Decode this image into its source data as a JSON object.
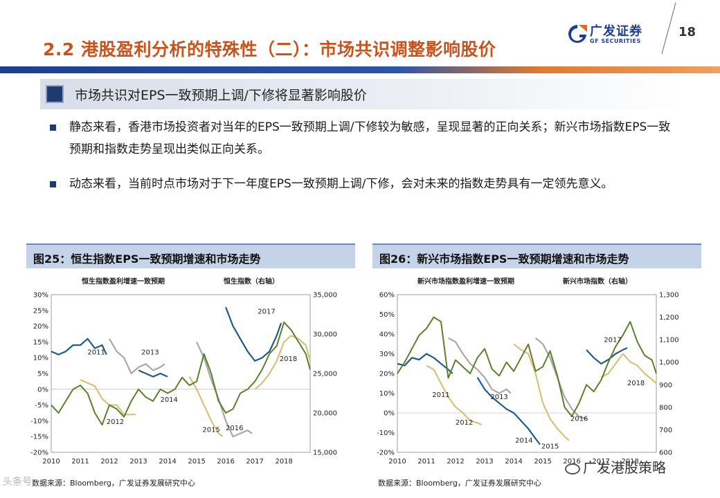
{
  "header": {
    "title": "2.2 港股盈利分析的特殊性（二）：市场共识调整影响股价",
    "logo_cn": "广发证券",
    "logo_en": "GF SECURITIES",
    "page_number": "18"
  },
  "section": {
    "heading": "市场共识对EPS一致预期上调/下修将显著影响股价"
  },
  "bullets": [
    "静态来看，香港市场投资者对当年的EPS一致预期上调/下修较为敏感，呈现显著的正向关系；新兴市场指数EPS一致预期和指数走势呈现出类似正向关系。",
    "动态来看，当前时点市场对于下一年度EPS一致预期上调/下修，会对未来的指数走势具有一定领先意义。"
  ],
  "colors": {
    "accent": "#c8531c",
    "navy": "#1f3a6e",
    "blue_line": "#1e5a8c",
    "gray_line": "#a8a8a8",
    "gold_line": "#d9c07a",
    "green_line": "#5b7f2c"
  },
  "figures": [
    {
      "title": "图25：恒生指数EPS一致预期增速和市场走势",
      "source": "数据来源：Bloomberg，广发证券发展研究中心"
    },
    {
      "title": "图26：新兴市场指数EPS一致预期增速和市场走势",
      "source": "数据来源：Bloomberg，广发证券发展研究中心"
    }
  ],
  "watermark": {
    "right": "广发港股策略",
    "left": "头条号"
  },
  "chart_data": [
    {
      "type": "line",
      "legend": [
        "恒生指数盈利增速一致预期",
        "恒生指数（右轴）"
      ],
      "x_labels": [
        "2010",
        "2011",
        "2012",
        "2013",
        "2014",
        "2015",
        "2016",
        "2017",
        "2018"
      ],
      "xlim": [
        2010,
        2018.9
      ],
      "ylim": [
        -20,
        30
      ],
      "y_ticks": [
        "30%",
        "25%",
        "20%",
        "15%",
        "10%",
        "5%",
        "0%",
        "-5%",
        "-10%",
        "-15%",
        "-20%"
      ],
      "y2lim": [
        15000,
        35000
      ],
      "y2_ticks": [
        "35,000",
        "30,000",
        "25,000",
        "20,000",
        "15,000"
      ],
      "annotations": [
        "2011",
        "2012",
        "2013",
        "2014",
        "2015",
        "2016",
        "2017",
        "2018"
      ],
      "series": [
        {
          "name": "2011",
          "color": "blue",
          "x": [
            2010,
            2010.25,
            2010.5,
            2010.75,
            2011,
            2011.25,
            2011.5,
            2011.75,
            2011.9
          ],
          "y": [
            12,
            11,
            12,
            14,
            14,
            16,
            13,
            14,
            11
          ]
        },
        {
          "name": "2012",
          "color": "gold",
          "x": [
            2011,
            2011.25,
            2011.5,
            2011.75,
            2012,
            2012.25,
            2012.5,
            2012.75,
            2012.9
          ],
          "y": [
            3,
            2,
            1,
            -3,
            -5,
            -5,
            -8,
            -8,
            -8
          ]
        },
        {
          "name": "2013",
          "color": "gray",
          "x": [
            2012,
            2012.25,
            2012.5,
            2012.75,
            2013,
            2013.25,
            2013.5,
            2013.75,
            2013.9
          ],
          "y": [
            16,
            12,
            10,
            5,
            7,
            8,
            6,
            7,
            8
          ]
        },
        {
          "name": "2014",
          "color": "blue",
          "x": [
            2013,
            2013.25,
            2013.5,
            2013.75,
            2014
          ],
          "y": [
            6,
            5,
            4,
            5,
            4
          ]
        },
        {
          "name": "2015",
          "color": "gold",
          "x": [
            2014.75,
            2015,
            2015.25,
            2015.5,
            2015.75,
            2015.9
          ],
          "y": [
            4,
            0,
            -5,
            -10,
            -14,
            -15
          ]
        },
        {
          "name": "2016",
          "color": "gray",
          "x": [
            2015,
            2015.25,
            2015.5,
            2015.75,
            2016,
            2016.25,
            2016.5,
            2016.75,
            2016.9
          ],
          "y": [
            15,
            10,
            3,
            -3,
            -10,
            -15,
            -14,
            -13,
            -14
          ]
        },
        {
          "name": "2017",
          "color": "blue",
          "x": [
            2016,
            2016.25,
            2016.5,
            2016.75,
            2017,
            2017.25,
            2017.5,
            2017.75,
            2017.9
          ],
          "y": [
            26,
            20,
            16,
            12,
            9,
            10,
            12,
            17,
            21
          ]
        },
        {
          "name": "2018",
          "color": "gold",
          "x": [
            2017,
            2017.25,
            2017.5,
            2017.75,
            2018,
            2018.25,
            2018.5,
            2018.75,
            2018.9
          ],
          "y": [
            0,
            2,
            5,
            9,
            15,
            17,
            16,
            14,
            9
          ]
        },
        {
          "name": "恒生指数（右轴）",
          "color": "green",
          "axis": "right",
          "x": [
            2010,
            2010.25,
            2010.5,
            2010.75,
            2011,
            2011.25,
            2011.5,
            2011.75,
            2012,
            2012.25,
            2012.5,
            2012.75,
            2013,
            2013.25,
            2013.5,
            2013.75,
            2014,
            2014.25,
            2014.5,
            2014.75,
            2015,
            2015.25,
            2015.5,
            2015.75,
            2016,
            2016.25,
            2016.5,
            2016.75,
            2017,
            2017.25,
            2017.5,
            2017.75,
            2018,
            2018.25,
            2018.5,
            2018.75,
            2018.9
          ],
          "y": [
            21000,
            20000,
            21500,
            23000,
            23500,
            22500,
            20000,
            18500,
            21000,
            20500,
            19500,
            21500,
            23000,
            22000,
            21500,
            23000,
            22500,
            23000,
            24500,
            23500,
            24000,
            27500,
            25000,
            21500,
            20000,
            20500,
            22500,
            23000,
            24000,
            25500,
            27500,
            28500,
            31500,
            30500,
            29000,
            27500,
            25500
          ]
        }
      ]
    },
    {
      "type": "line",
      "legend": [
        "新兴市场指数盈利增速一致预期",
        "新兴市场指数（右轴）"
      ],
      "x_labels": [
        "2010",
        "2011",
        "2012",
        "2013",
        "2014",
        "2015",
        "2016",
        "2017",
        "2018"
      ],
      "xlim": [
        2010,
        2018.9
      ],
      "ylim": [
        -20,
        60
      ],
      "y_ticks": [
        "60%",
        "50%",
        "40%",
        "30%",
        "20%",
        "10%",
        "0%",
        "-10%",
        "-20%"
      ],
      "y2lim": [
        600,
        1300
      ],
      "y2_ticks": [
        "1,300",
        "1,200",
        "1,100",
        "1,000",
        "900",
        "800",
        "700",
        "600"
      ],
      "annotations": [
        "2011",
        "2012",
        "2013",
        "2014",
        "2015",
        "2016",
        "2017",
        "2018"
      ],
      "series": [
        {
          "name": "2011",
          "color": "blue",
          "x": [
            2010,
            2010.25,
            2010.5,
            2010.75,
            2011,
            2011.25,
            2011.5,
            2011.75,
            2011.9
          ],
          "y": [
            25,
            24,
            28,
            27,
            30,
            28,
            25,
            22,
            20
          ]
        },
        {
          "name": "2012",
          "color": "gold",
          "x": [
            2011,
            2011.25,
            2011.5,
            2011.75,
            2012,
            2012.25,
            2012.5,
            2012.75,
            2012.9
          ],
          "y": [
            24,
            22,
            15,
            8,
            3,
            0,
            -4,
            -5,
            -6
          ]
        },
        {
          "name": "2013",
          "color": "gray",
          "x": [
            2011.75,
            2012,
            2012.25,
            2012.5,
            2012.75,
            2013,
            2013.25,
            2013.5,
            2013.75,
            2013.9
          ],
          "y": [
            38,
            36,
            30,
            25,
            22,
            18,
            12,
            10,
            12,
            10
          ]
        },
        {
          "name": "2014",
          "color": "blue",
          "x": [
            2012.75,
            2013,
            2013.25,
            2013.5,
            2013.75,
            2014,
            2014.25,
            2014.5,
            2014.75,
            2014.9
          ],
          "y": [
            18,
            12,
            8,
            5,
            2,
            0,
            -4,
            -8,
            -13,
            -16
          ]
        },
        {
          "name": "2015",
          "color": "gold",
          "x": [
            2014,
            2014.25,
            2014.5,
            2014.75,
            2015,
            2015.25,
            2015.5,
            2015.75,
            2015.9
          ],
          "y": [
            35,
            32,
            30,
            20,
            5,
            -3,
            -8,
            -12,
            -14
          ]
        },
        {
          "name": "2016",
          "color": "gray",
          "x": [
            2014.75,
            2015,
            2015.25,
            2015.5,
            2015.75,
            2016,
            2016.25,
            2016.5
          ],
          "y": [
            38,
            35,
            28,
            18,
            8,
            2,
            -2,
            -3
          ]
        },
        {
          "name": "2017",
          "color": "blue",
          "x": [
            2016.5,
            2016.75,
            2017,
            2017.25,
            2017.5,
            2017.75,
            2017.9
          ],
          "y": [
            32,
            28,
            25,
            27,
            30,
            32,
            33
          ]
        },
        {
          "name": "2018",
          "color": "gold",
          "x": [
            2017,
            2017.25,
            2017.5,
            2017.75,
            2018,
            2018.25,
            2018.5,
            2018.75,
            2018.9
          ],
          "y": [
            18,
            20,
            25,
            30,
            26,
            24,
            20,
            17,
            15
          ]
        },
        {
          "name": "新兴市场指数（右轴）",
          "color": "green",
          "axis": "right",
          "x": [
            2010,
            2010.25,
            2010.5,
            2010.75,
            2011,
            2011.25,
            2011.5,
            2011.75,
            2012,
            2012.25,
            2012.5,
            2012.75,
            2013,
            2013.25,
            2013.5,
            2013.75,
            2014,
            2014.25,
            2014.5,
            2014.75,
            2015,
            2015.25,
            2015.5,
            2015.75,
            2016,
            2016.25,
            2016.5,
            2016.75,
            2017,
            2017.25,
            2017.5,
            2017.75,
            2018,
            2018.25,
            2018.5,
            2018.75,
            2018.9
          ],
          "y": [
            950,
            1000,
            1060,
            1120,
            1150,
            1200,
            1180,
            930,
            1010,
            980,
            950,
            1020,
            1060,
            970,
            940,
            1000,
            960,
            1020,
            1080,
            960,
            980,
            1050,
            940,
            800,
            760,
            820,
            900,
            870,
            920,
            1000,
            1070,
            1120,
            1180,
            1090,
            1030,
            1010,
            950
          ]
        }
      ]
    }
  ]
}
